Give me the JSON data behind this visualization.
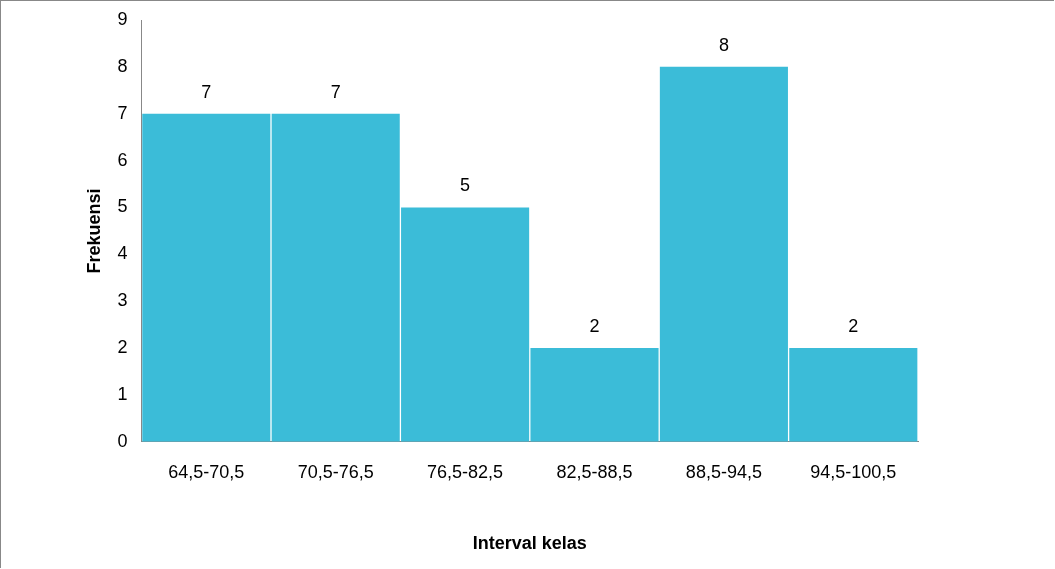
{
  "chart_data": {
    "type": "bar",
    "xlabel": "Interval kelas",
    "ylabel": "Frekuensi",
    "categories": [
      "64,5-70,5",
      "70,5-76,5",
      "76,5-82,5",
      "82,5-88,5",
      "88,5-94,5",
      "94,5-100,5"
    ],
    "values": [
      7,
      7,
      5,
      2,
      8,
      2
    ],
    "color": "#3bbcd8",
    "ylim": [
      0,
      9
    ],
    "yticks": [
      0,
      1,
      2,
      3,
      4,
      5,
      6,
      7,
      8,
      9
    ],
    "grid": false,
    "legend": false,
    "data_labels": true
  }
}
